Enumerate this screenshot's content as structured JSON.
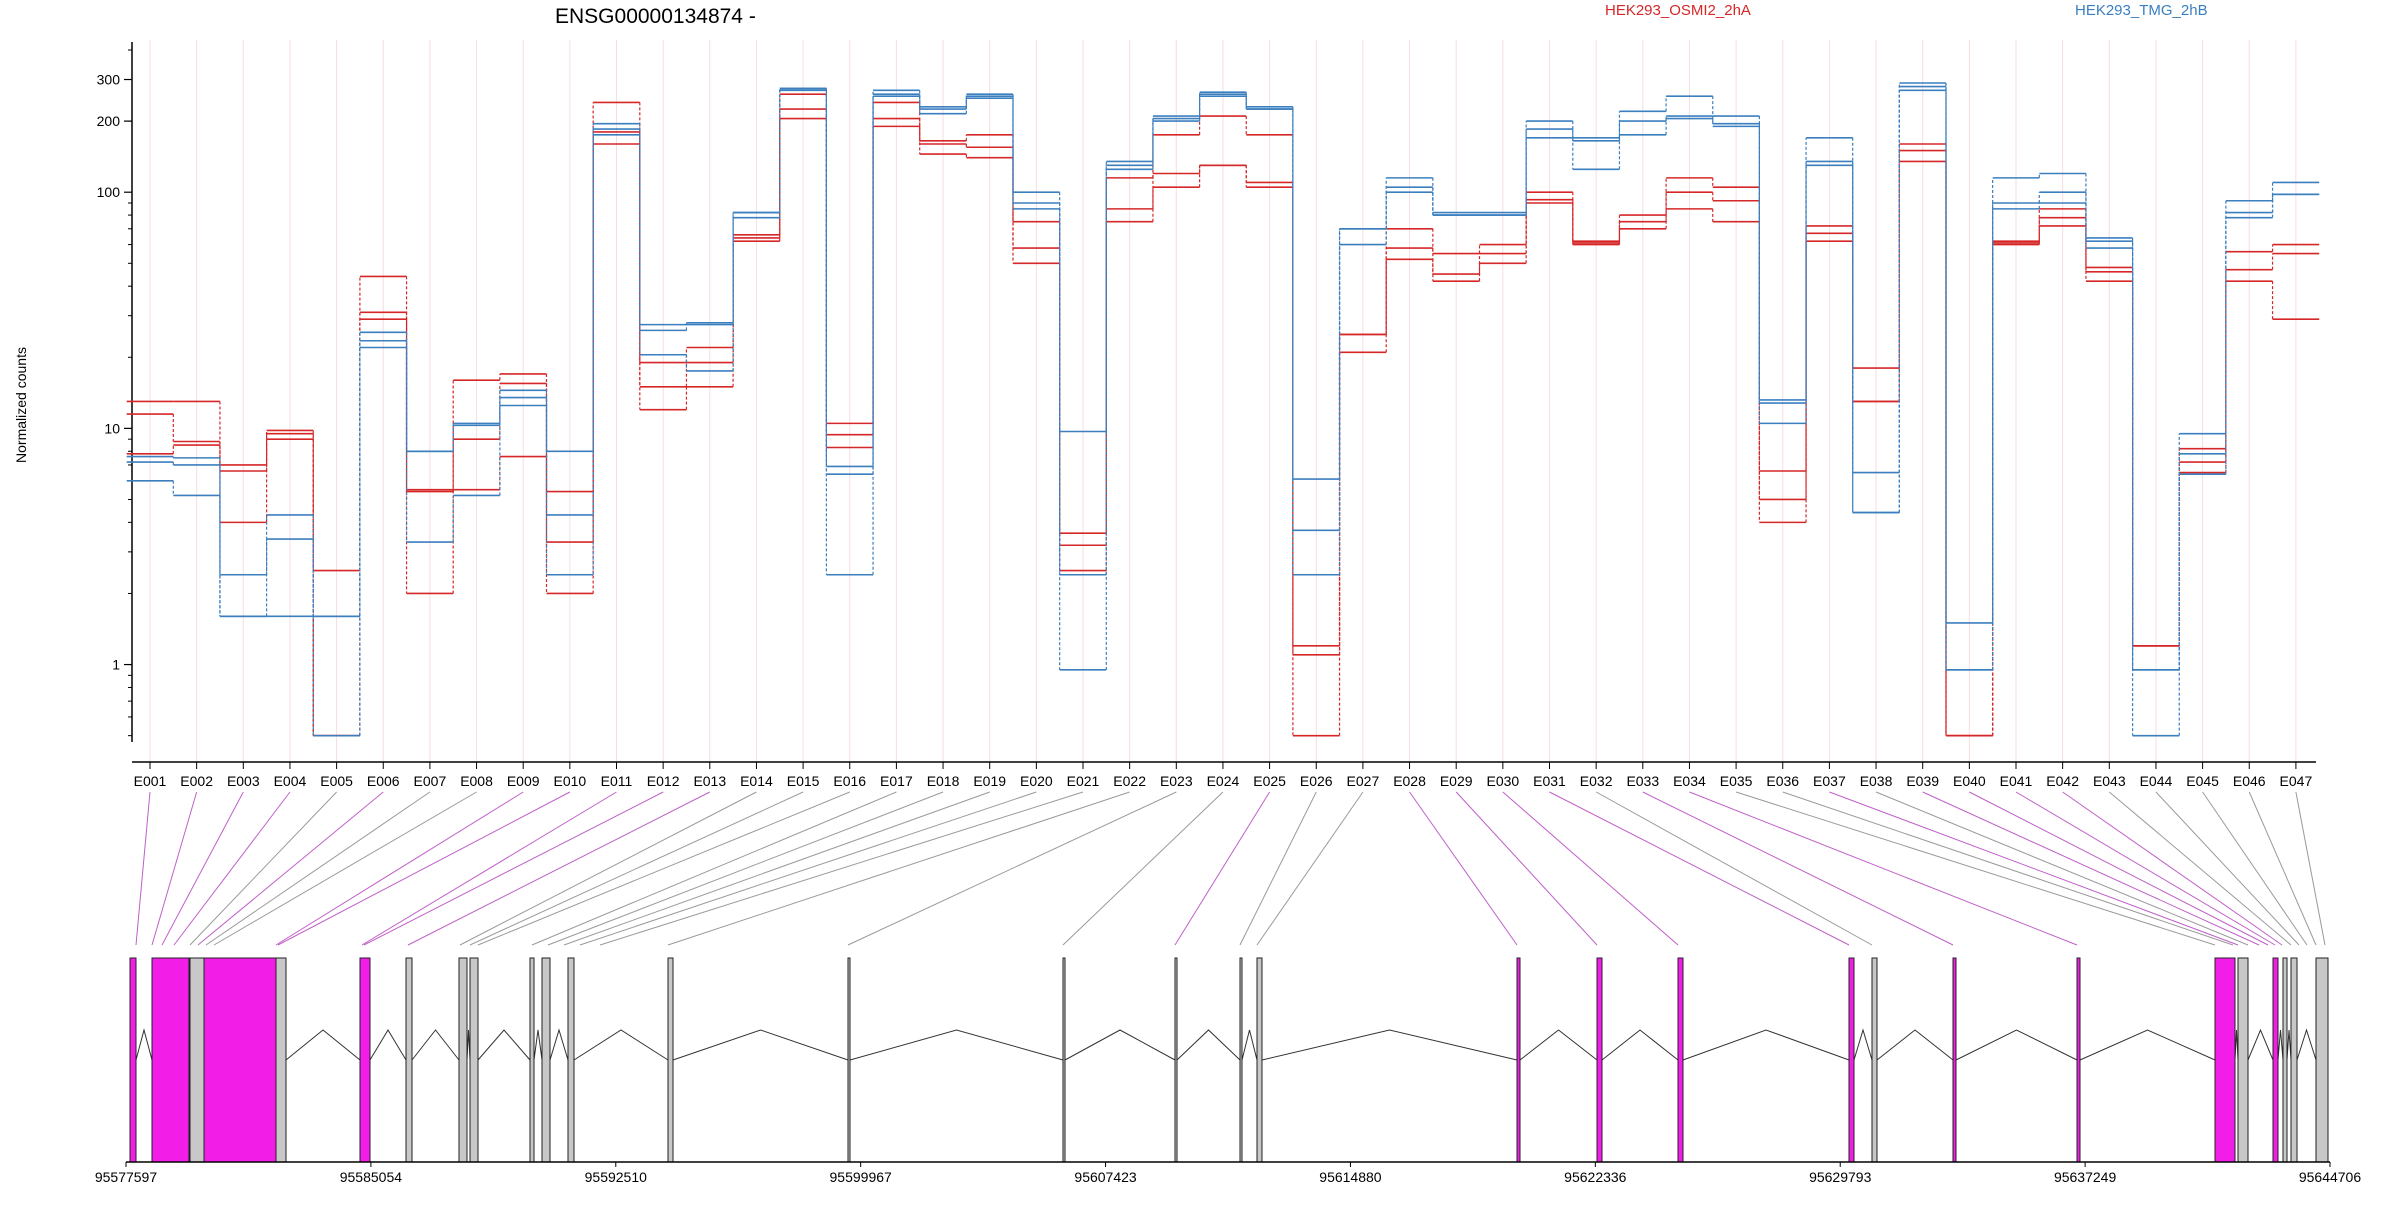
{
  "chart_data": {
    "type": "line",
    "title": "ENSG00000134874 -",
    "xlabel": "",
    "ylabel": "Normalized counts",
    "y_scale": "log",
    "ylim": [
      0.47,
      420
    ],
    "yticks": [
      {
        "value": 1,
        "label": "1"
      },
      {
        "value": 10,
        "label": "10"
      },
      {
        "value": 100,
        "label": "100"
      },
      {
        "value": 200,
        "label": "200"
      },
      {
        "value": 300,
        "label": "300"
      }
    ],
    "grid": "vertical",
    "legend_position": "top",
    "categories": [
      "E001",
      "E002",
      "E003",
      "E004",
      "E005",
      "E006",
      "E007",
      "E008",
      "E009",
      "E010",
      "E011",
      "E012",
      "E013",
      "E014",
      "E015",
      "E016",
      "E017",
      "E018",
      "E019",
      "E020",
      "E021",
      "E022",
      "E023",
      "E024",
      "E025",
      "E026",
      "E027",
      "E028",
      "E029",
      "E030",
      "E031",
      "E032",
      "E033",
      "E034",
      "E035",
      "E036",
      "E037",
      "E038",
      "E039",
      "E040",
      "E041",
      "E042",
      "E043",
      "E044",
      "E045",
      "E046",
      "E047"
    ],
    "conditions": [
      {
        "name": "HEK293_OSMI2_2hA",
        "color": "#d62728"
      },
      {
        "name": "HEK293_TMG_2hB",
        "color": "#3b7fbf"
      }
    ],
    "series": [
      {
        "condition": "HEK293_OSMI2_2hA",
        "values": [
          13,
          13,
          7,
          9.8,
          2.5,
          44,
          2,
          16,
          17,
          2,
          240,
          12,
          15,
          62,
          260,
          10.5,
          240,
          145,
          140,
          50,
          2.5,
          75,
          105,
          130,
          105,
          0.5,
          21,
          52,
          42,
          50,
          90,
          62,
          70,
          85,
          75,
          4,
          62,
          13,
          135,
          0.5,
          62,
          72,
          42,
          1.2,
          6.5,
          42,
          29
        ]
      },
      {
        "condition": "HEK293_OSMI2_2hA",
        "values": [
          11.5,
          8.8,
          4,
          9.5,
          0.5,
          31,
          5.5,
          5.5,
          7.6,
          3.3,
          180,
          15,
          19,
          64,
          225,
          9.4,
          205,
          160,
          155,
          58,
          3.2,
          85,
          120,
          130,
          110,
          1.2,
          25,
          58,
          45,
          55,
          93,
          61,
          80,
          100,
          92,
          5,
          67,
          18,
          150,
          0.5,
          60,
          78,
          46,
          1.2,
          7.2,
          47,
          55
        ]
      },
      {
        "condition": "HEK293_OSMI2_2hA",
        "values": [
          7.8,
          8.5,
          6.6,
          9,
          0.5,
          29,
          5.4,
          9,
          15.5,
          5.4,
          160,
          19,
          22,
          66,
          205,
          8.3,
          190,
          165,
          175,
          75,
          3.6,
          115,
          175,
          210,
          175,
          1.1,
          25,
          70,
          55,
          60,
          100,
          60,
          75,
          115,
          105,
          6.6,
          72,
          13,
          160,
          0.5,
          61,
          85,
          48,
          1.2,
          8.2,
          56,
          60
        ]
      },
      {
        "condition": "HEK293_TMG_2hB",
        "values": [
          7.6,
          7.5,
          2.4,
          4.3,
          1.6,
          22,
          8,
          10.3,
          13.5,
          8,
          185,
          26,
          28,
          82,
          275,
          2.4,
          270,
          215,
          260,
          100,
          0.95,
          135,
          210,
          265,
          230,
          6.1,
          70,
          115,
          82,
          82,
          200,
          170,
          220,
          255,
          210,
          13.2,
          170,
          4.4,
          290,
          1.5,
          115,
          120,
          64,
          0.95,
          9.5,
          92,
          110
        ]
      },
      {
        "condition": "HEK293_TMG_2hB",
        "values": [
          7.2,
          7,
          1.6,
          3.4,
          1.6,
          23.5,
          8,
          10.5,
          14.5,
          4.3,
          195,
          20.5,
          17.5,
          78,
          275,
          6.4,
          260,
          230,
          255,
          90,
          9.7,
          130,
          205,
          255,
          225,
          3.7,
          70,
          105,
          80,
          80,
          185,
          165,
          200,
          205,
          195,
          12.8,
          135,
          6.5,
          280,
          0.95,
          90,
          100,
          62,
          0.95,
          7.8,
          82,
          98
        ]
      },
      {
        "condition": "HEK293_TMG_2hB",
        "values": [
          6,
          5.2,
          1.6,
          1.6,
          0.5,
          25.5,
          3.3,
          5.2,
          12.5,
          2.4,
          175,
          27.5,
          27.5,
          82,
          270,
          6.9,
          255,
          225,
          250,
          85,
          2.4,
          125,
          200,
          260,
          225,
          2.4,
          60,
          100,
          80,
          80,
          170,
          125,
          175,
          210,
          190,
          10.5,
          130,
          4.4,
          270,
          0.95,
          85,
          90,
          58,
          0.5,
          6.4,
          78,
          98
        ]
      }
    ],
    "gene_model": {
      "coordinate_labels": [
        "95577597",
        "95585054",
        "95592510",
        "95599967",
        "95607423",
        "95614880",
        "95622336",
        "95629793",
        "95637249",
        "95644706"
      ],
      "exon_highlight": [
        "E001",
        "E002",
        "E003",
        "E005",
        "E006",
        "E011",
        "E016",
        "E026",
        "E032",
        "E033",
        "E034",
        "E036",
        "E038",
        "E039",
        "E041",
        "E043",
        "E045"
      ],
      "highlight_color": "#f21ee8",
      "plain_color": "#c8c8c8"
    }
  }
}
